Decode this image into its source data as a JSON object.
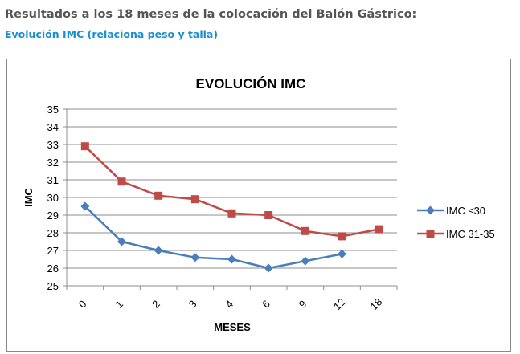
{
  "header": {
    "title": "Resultados a los 18 meses de la colocación del Balón Gástrico:",
    "subtitle": "Evolución IMC (relaciona peso y talla)"
  },
  "chart_data": {
    "type": "line",
    "title": "EVOLUCIÓN IMC",
    "xlabel": "MESES",
    "ylabel": "IMC",
    "categories": [
      "0",
      "1",
      "2",
      "3",
      "4",
      "6",
      "9",
      "12",
      "18"
    ],
    "ylim": [
      25,
      35
    ],
    "yticks": [
      25,
      26,
      27,
      28,
      29,
      30,
      31,
      32,
      33,
      34,
      35
    ],
    "grid": true,
    "legend_position": "right",
    "series": [
      {
        "name": "IMC ≤30",
        "color": "#4a7ebb",
        "marker": "diamond",
        "values": [
          29.5,
          27.5,
          27.0,
          26.6,
          26.5,
          26.0,
          26.4,
          26.8,
          null
        ]
      },
      {
        "name": "IMC 31-35",
        "color": "#be4b48",
        "marker": "square",
        "values": [
          32.9,
          30.9,
          30.1,
          29.9,
          29.1,
          29.0,
          28.1,
          27.8,
          28.2
        ]
      }
    ]
  }
}
